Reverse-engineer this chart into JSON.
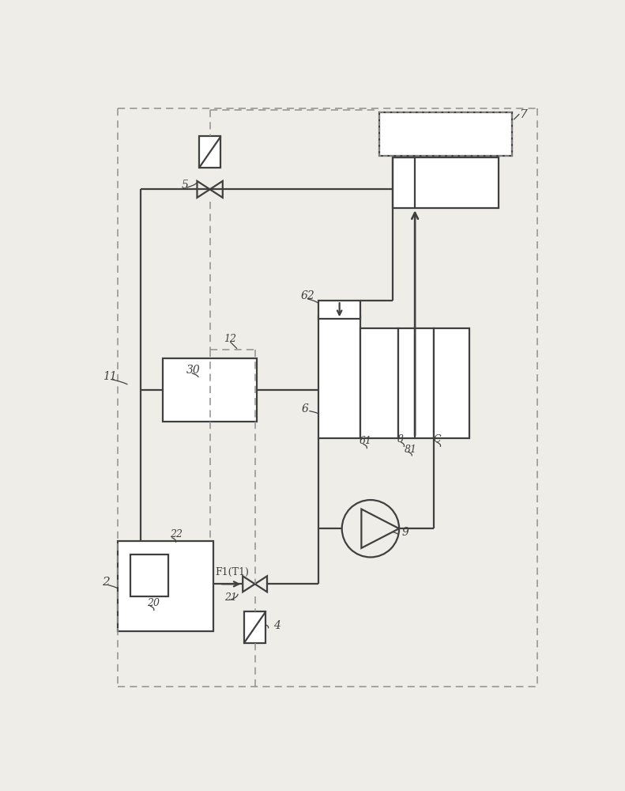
{
  "bg": "#eeede8",
  "lc": "#404040",
  "dc": "#909090",
  "lw": 1.6,
  "dlw": 1.1
}
